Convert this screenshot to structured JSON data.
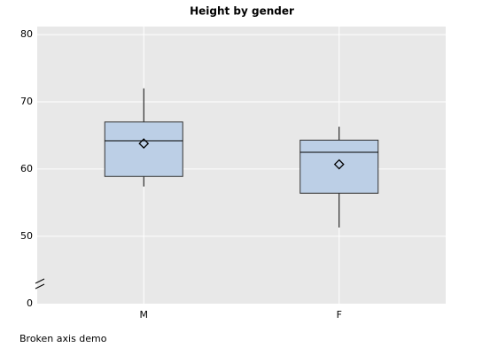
{
  "chart_data": {
    "type": "box",
    "title": "Height by gender",
    "categories": [
      "M",
      "F"
    ],
    "boxes": [
      {
        "low": 57.4,
        "q1": 58.9,
        "median": 64.2,
        "q3": 67.0,
        "high": 72.0,
        "mean": 63.8
      },
      {
        "low": 51.3,
        "q1": 56.4,
        "median": 62.5,
        "q3": 64.3,
        "high": 66.3,
        "mean": 60.7
      }
    ],
    "color": "#bccfe6",
    "ylim": [
      0,
      81.2
    ],
    "yticks": [
      0,
      50,
      60,
      70,
      80
    ],
    "y_break": [
      0,
      42.6
    ],
    "grid": true,
    "footnote": "Broken axis demo"
  }
}
